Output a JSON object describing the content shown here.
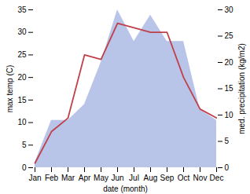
{
  "chart_data": {
    "type": "line",
    "xlabel": "date (month)",
    "ylabel": "max temp (C)",
    "y2label": "med. precipitation (kg/m2)",
    "categories": [
      "Jan",
      "Feb",
      "Mar",
      "Apr",
      "May",
      "Jun",
      "Jul",
      "Aug",
      "Sep",
      "Oct",
      "Nov",
      "Dec"
    ],
    "series": [
      {
        "type": "area",
        "axis": "y2",
        "color": "#b8c4e8",
        "values": [
          1,
          9,
          9,
          12,
          20,
          30,
          24,
          29,
          24,
          24,
          11,
          9
        ]
      },
      {
        "type": "line",
        "color": "#c0404a",
        "values": [
          1,
          8,
          11,
          25,
          24,
          32,
          31,
          30,
          30,
          20,
          13,
          11
        ]
      }
    ],
    "ylim": [
      0,
      35
    ],
    "yticks": [
      0,
      5,
      10,
      15,
      20,
      25,
      30,
      35
    ],
    "y2lim": [
      0,
      30
    ],
    "y2ticks": [
      0,
      5,
      10,
      15,
      20,
      25,
      30
    ],
    "grid": false
  }
}
